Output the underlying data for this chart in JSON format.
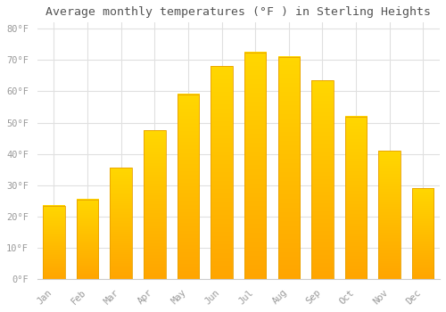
{
  "title": "Average monthly temperatures (°F ) in Sterling Heights",
  "months": [
    "Jan",
    "Feb",
    "Mar",
    "Apr",
    "May",
    "Jun",
    "Jul",
    "Aug",
    "Sep",
    "Oct",
    "Nov",
    "Dec"
  ],
  "values": [
    23.5,
    25.5,
    35.5,
    47.5,
    59.0,
    68.0,
    72.5,
    71.0,
    63.5,
    52.0,
    41.0,
    29.0
  ],
  "bar_color_top": "#FFD700",
  "bar_color_bottom": "#FFA500",
  "bar_edge_color": "#E8A000",
  "background_color": "#FFFFFF",
  "grid_color": "#E0E0E0",
  "tick_label_color": "#999999",
  "title_color": "#555555",
  "ylim": [
    0,
    82
  ],
  "yticks": [
    0,
    10,
    20,
    30,
    40,
    50,
    60,
    70,
    80
  ],
  "ytick_labels": [
    "0°F",
    "10°F",
    "20°F",
    "30°F",
    "40°F",
    "50°F",
    "60°F",
    "70°F",
    "80°F"
  ],
  "bar_width": 0.65
}
